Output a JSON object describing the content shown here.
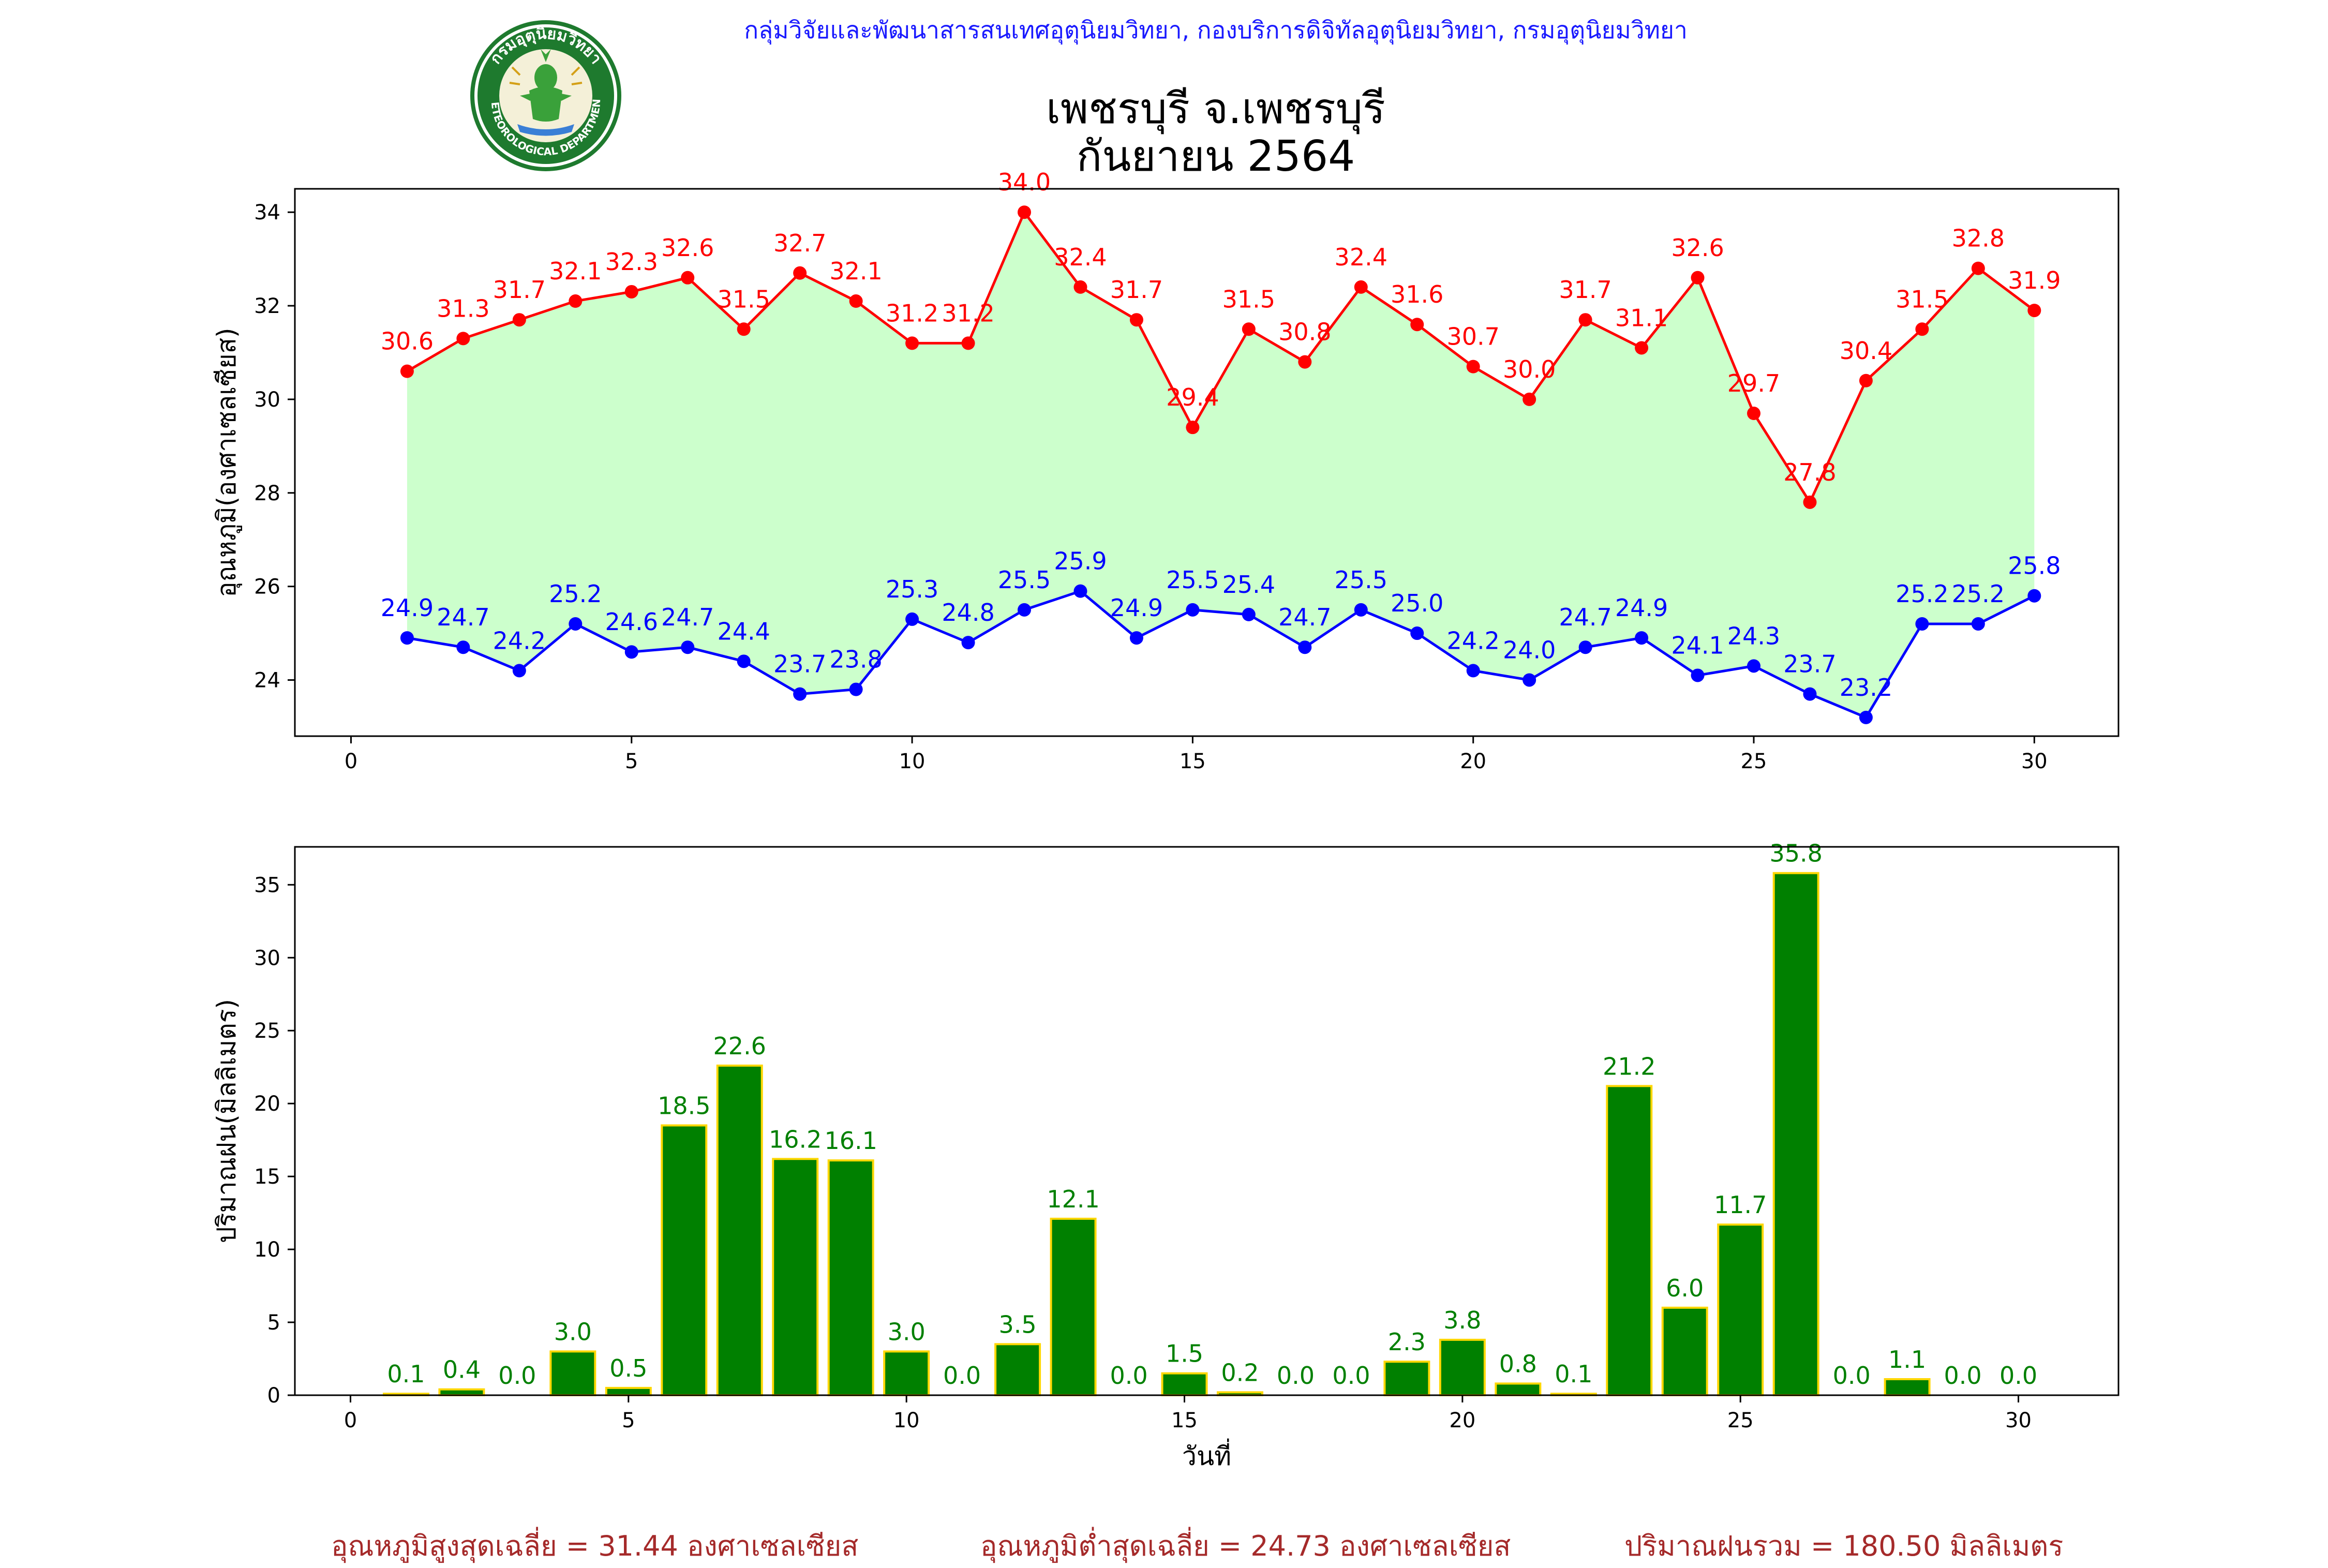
{
  "header": {
    "credit": "กลุ่มวิจัยและพัฒนาสารสนเทศอุตุนิยมวิทยา, กองบริการดิจิทัลอุตุนิยมวิทยา, กรมอุตุนิยมวิทยา",
    "title_line1": "เพชรบุรี จ.เพชรบุรี",
    "title_line2": "กันยายน 2564",
    "logo_text_top": "กรมอุตุนิยมวิทยา",
    "logo_text_bottom": "METEOROLOGICAL DEPARTMENT"
  },
  "summary": {
    "max_avg": "อุณหภูมิสูงสุดเฉลี่ย = 31.44 องศาเซลเซียส",
    "min_avg": "อุณหภูมิต่ำสุดเฉลี่ย = 24.73 องศาเซลเซียส",
    "rain_total": "ปริมาณฝนรวม = 180.50 มิลลิเมตร"
  },
  "colors": {
    "max_line": "#ff0000",
    "min_line": "#0000ff",
    "band_fill": "#ccffcc",
    "bar_fill": "#008000",
    "bar_edge": "#ffd700",
    "bar_label": "#008000",
    "credit": "#1a1aff",
    "summary": "#a52a2a"
  },
  "chart_data": [
    {
      "type": "line",
      "title": "",
      "xlabel": "",
      "ylabel": "อุณหภูมิ(องศาเซลเซียส)",
      "xlim": [
        -1,
        31.5
      ],
      "ylim": [
        22.8,
        34.5
      ],
      "xticks": [
        0,
        5,
        10,
        15,
        20,
        25,
        30
      ],
      "yticks": [
        24,
        26,
        28,
        30,
        32,
        34
      ],
      "grid": false,
      "x": [
        1,
        2,
        3,
        4,
        5,
        6,
        7,
        8,
        9,
        10,
        11,
        12,
        13,
        14,
        15,
        16,
        17,
        18,
        19,
        20,
        21,
        22,
        23,
        24,
        25,
        26,
        27,
        28,
        29,
        30
      ],
      "series": [
        {
          "key": "max",
          "values": [
            30.6,
            31.3,
            31.7,
            32.1,
            32.3,
            32.6,
            31.5,
            32.7,
            32.1,
            31.2,
            31.2,
            34.0,
            32.4,
            31.7,
            29.4,
            31.5,
            30.8,
            32.4,
            31.6,
            30.7,
            30.0,
            31.7,
            31.1,
            32.6,
            29.7,
            27.8,
            30.4,
            31.5,
            32.8,
            31.9
          ]
        },
        {
          "key": "min",
          "values": [
            24.9,
            24.7,
            24.2,
            25.2,
            24.6,
            24.7,
            24.4,
            23.7,
            23.8,
            25.3,
            24.8,
            25.5,
            25.9,
            24.9,
            25.5,
            25.4,
            24.7,
            25.5,
            25.0,
            24.2,
            24.0,
            24.7,
            24.9,
            24.1,
            24.3,
            23.7,
            23.2,
            25.2,
            25.2,
            25.8
          ]
        }
      ]
    },
    {
      "type": "bar",
      "title": "",
      "xlabel": "วันที่",
      "ylabel": "ปริมาณฝน(มิลลิเมตร)",
      "xlim": [
        -1,
        31.8
      ],
      "ylim": [
        0,
        37.6
      ],
      "xticks": [
        0,
        5,
        10,
        15,
        20,
        25,
        30
      ],
      "yticks": [
        0,
        5,
        10,
        15,
        20,
        25,
        30,
        35
      ],
      "grid": false,
      "categories": [
        1,
        2,
        3,
        4,
        5,
        6,
        7,
        8,
        9,
        10,
        11,
        12,
        13,
        14,
        15,
        16,
        17,
        18,
        19,
        20,
        21,
        22,
        23,
        24,
        25,
        26,
        27,
        28,
        29,
        30
      ],
      "values": [
        0.1,
        0.4,
        0.0,
        3.0,
        0.5,
        18.5,
        22.6,
        16.2,
        16.1,
        3.0,
        0.0,
        3.5,
        12.1,
        0.0,
        1.5,
        0.2,
        0.0,
        0.0,
        2.3,
        3.8,
        0.8,
        0.1,
        21.2,
        6.0,
        11.7,
        35.8,
        0.0,
        1.1,
        0.0,
        0.0
      ]
    }
  ]
}
